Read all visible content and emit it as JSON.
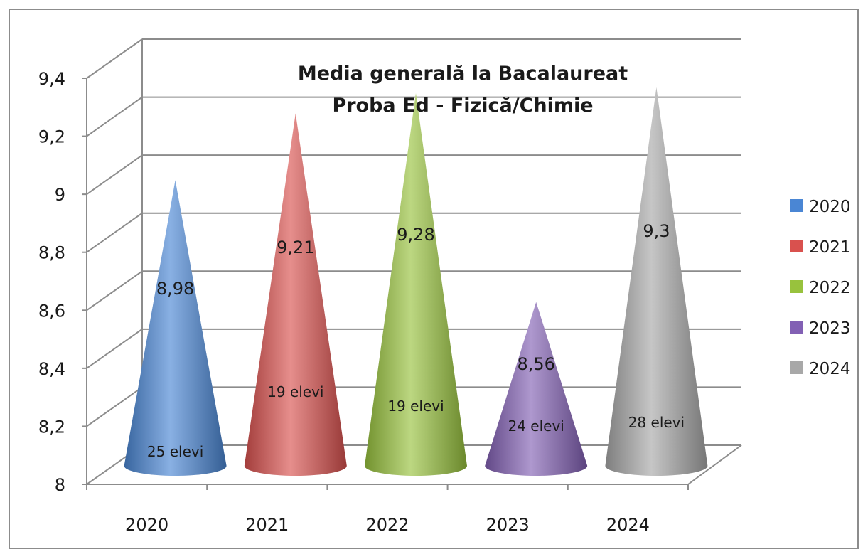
{
  "chart_data": {
    "type": "bar",
    "subtype": "3d-cone",
    "title": "Media generală la Bacalaureat",
    "subtitle": "Proba Ed - Fizică/Chimie",
    "categories": [
      "2020",
      "2021",
      "2022",
      "2023",
      "2024"
    ],
    "values": [
      8.98,
      9.21,
      9.28,
      8.56,
      9.3
    ],
    "value_labels": [
      "8,98",
      "9,21",
      "9,28",
      "8,56",
      "9,3"
    ],
    "count_labels": [
      "25 elevi",
      "19 elevi",
      "19 elevi",
      "24 elevi",
      "28 elevi"
    ],
    "colors": [
      "#4a86d4",
      "#d9514e",
      "#98c23d",
      "#8260b4",
      "#a8a8a8"
    ],
    "legend": {
      "placement": "right",
      "entries": [
        "2020",
        "2021",
        "2022",
        "2023",
        "2024"
      ]
    },
    "ylim": [
      8,
      9.4
    ],
    "yticks": [
      "8",
      "8,2",
      "8,4",
      "8,6",
      "8,8",
      "9",
      "9,2",
      "9,4"
    ],
    "grid": true,
    "xlabel": "",
    "ylabel": ""
  }
}
